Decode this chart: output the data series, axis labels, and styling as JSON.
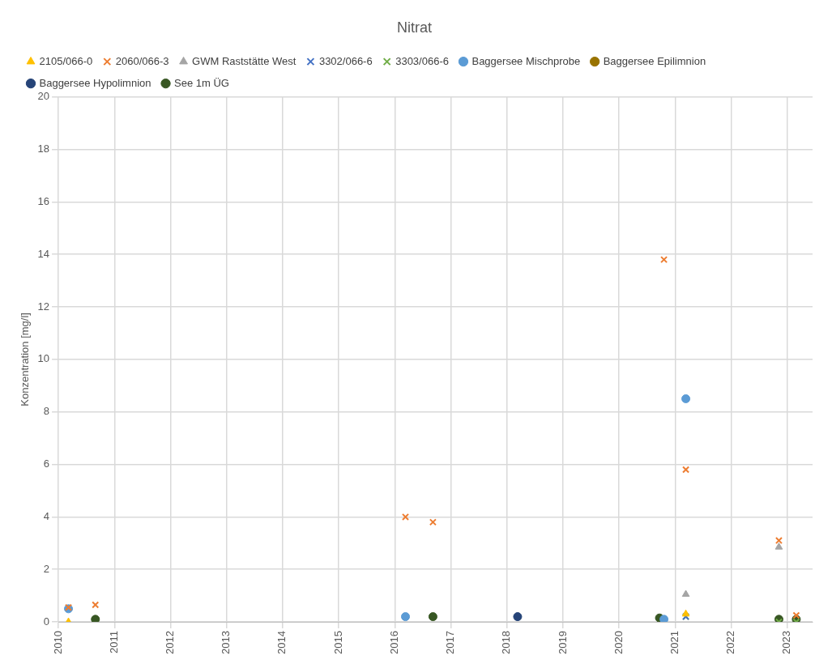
{
  "chart_data": {
    "type": "scatter",
    "title": "Nitrat",
    "ylabel": "Konzentration [mg/l]",
    "xlim": [
      2010,
      2023.45
    ],
    "xticks": [
      2010,
      2011,
      2012,
      2013,
      2014,
      2015,
      2016,
      2017,
      2018,
      2019,
      2020,
      2021,
      2022,
      2023
    ],
    "ylim": [
      0,
      20
    ],
    "yticks": [
      0,
      2,
      4,
      6,
      8,
      10,
      12,
      14,
      16,
      18,
      20
    ],
    "grid": true,
    "legend": "top",
    "series": [
      {
        "name": "2105/066-0",
        "color": "#ffc000",
        "marker": "triangle",
        "x": [
          2010.18,
          2021.19
        ],
        "values": [
          0,
          0.3
        ]
      },
      {
        "name": "2060/066-3",
        "color": "#ed7d31",
        "marker": "cross",
        "x": [
          2010.18,
          2010.66,
          2016.19,
          2016.68,
          2020.8,
          2021.19,
          2022.85,
          2023.16
        ],
        "values": [
          0.55,
          0.65,
          4.0,
          3.8,
          13.8,
          5.8,
          3.1,
          0.25
        ]
      },
      {
        "name": "GWM Raststätte West",
        "color": "#a5a5a5",
        "marker": "triangle",
        "x": [
          2021.19,
          2022.85
        ],
        "values": [
          1.05,
          2.85
        ]
      },
      {
        "name": "3302/066-6",
        "color": "#4472c4",
        "marker": "cross",
        "x": [
          2021.19
        ],
        "values": [
          0.2
        ]
      },
      {
        "name": "3303/066-6",
        "color": "#70ad47",
        "marker": "cross",
        "x": [
          2021.19,
          2022.85,
          2023.16
        ],
        "values": [
          0.2,
          0,
          0
        ]
      },
      {
        "name": "Baggersee Mischprobe",
        "color": "#5b9bd5",
        "marker": "circle",
        "x": [
          2010.18,
          2016.19,
          2020.8,
          2021.19
        ],
        "values": [
          0.5,
          0.2,
          0.1,
          8.5
        ]
      },
      {
        "name": "Baggersee Epilimnion",
        "color": "#997300",
        "marker": "circle"
      },
      {
        "name": "Baggersee Hypolimnion",
        "color": "#264478",
        "marker": "circle",
        "x": [
          2018.19
        ],
        "values": [
          0.2
        ]
      },
      {
        "name": "See 1m ÜG",
        "color": "#385723",
        "marker": "circle",
        "x": [
          2010.66,
          2016.68,
          2020.72,
          2022.85,
          2023.16
        ],
        "values": [
          0.1,
          0.2,
          0.15,
          0.1,
          0.1
        ]
      }
    ]
  }
}
